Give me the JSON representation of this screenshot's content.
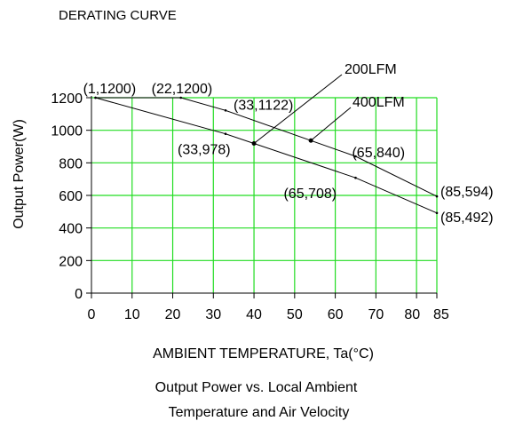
{
  "chart_data": {
    "type": "line",
    "title": "DERATING CURVE",
    "xlabel": "AMBIENT TEMPERATURE, Ta(°C)",
    "ylabel": "Output Power(W)",
    "caption_line1": "Output Power vs. Local Ambient",
    "caption_line2": "Temperature and Air Velocity",
    "xlim": [
      0,
      85
    ],
    "ylim": [
      0,
      1200
    ],
    "x_ticks": [
      0,
      10,
      20,
      30,
      40,
      50,
      60,
      70,
      80,
      85
    ],
    "y_ticks": [
      0,
      200,
      400,
      600,
      800,
      1000,
      1200
    ],
    "grid": true,
    "grid_color": "#22dd22",
    "series": [
      {
        "name": "400LFM",
        "x": [
          1,
          22,
          33,
          65,
          85
        ],
        "y": [
          1200,
          1200,
          1122,
          840,
          594
        ]
      },
      {
        "name": "200LFM",
        "x": [
          1,
          33,
          65,
          85
        ],
        "y": [
          1200,
          978,
          708,
          492
        ]
      }
    ],
    "point_labels": [
      {
        "text": "(1,1200)",
        "x": 1,
        "y": 1200
      },
      {
        "text": "(22,1200)",
        "x": 22,
        "y": 1200
      },
      {
        "text": "(33,1122)",
        "x": 33,
        "y": 1122
      },
      {
        "text": "(33,978)",
        "x": 33,
        "y": 978
      },
      {
        "text": "(65,840)",
        "x": 65,
        "y": 840
      },
      {
        "text": "(65,708)",
        "x": 65,
        "y": 708
      },
      {
        "text": "(85,594)",
        "x": 85,
        "y": 594
      },
      {
        "text": "(85,492)",
        "x": 85,
        "y": 492
      }
    ]
  }
}
